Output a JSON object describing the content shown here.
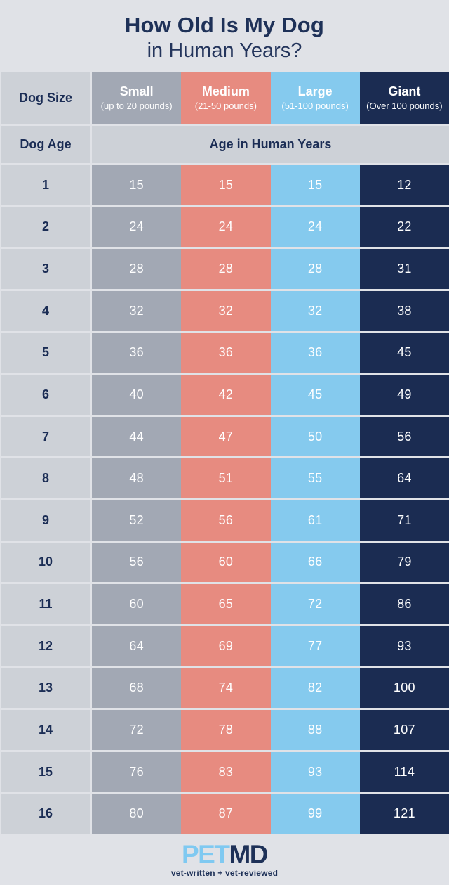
{
  "title": {
    "line1": "How Old Is My Dog",
    "line2": "in Human Years?"
  },
  "colors": {
    "background": "#E0E2E7",
    "navy_text": "#1E3158",
    "light_cell": "#CDD1D7",
    "white_text": "#FFFFFF",
    "small_column": "#A2A8B4",
    "medium_column": "#E78B80",
    "large_column": "#85CAEE",
    "giant_column": "#1B2C52",
    "logo_pet_blue": "#7FC9F1"
  },
  "table": {
    "corner_label": "Dog Size",
    "age_label": "Dog Age",
    "subheader_label": "Age in Human Years",
    "columns": [
      {
        "name": "Small",
        "subtitle": "(up to 20 pounds)",
        "color": "#A2A8B4"
      },
      {
        "name": "Medium",
        "subtitle": "(21-50 pounds)",
        "color": "#E78B80"
      },
      {
        "name": "Large",
        "subtitle": "(51-100 pounds)",
        "color": "#85CAEE"
      },
      {
        "name": "Giant",
        "subtitle": "(Over 100 pounds)",
        "color": "#1B2C52"
      }
    ],
    "rows": [
      {
        "age": "1",
        "values": [
          "15",
          "15",
          "15",
          "12"
        ]
      },
      {
        "age": "2",
        "values": [
          "24",
          "24",
          "24",
          "22"
        ]
      },
      {
        "age": "3",
        "values": [
          "28",
          "28",
          "28",
          "31"
        ]
      },
      {
        "age": "4",
        "values": [
          "32",
          "32",
          "32",
          "38"
        ]
      },
      {
        "age": "5",
        "values": [
          "36",
          "36",
          "36",
          "45"
        ]
      },
      {
        "age": "6",
        "values": [
          "40",
          "42",
          "45",
          "49"
        ]
      },
      {
        "age": "7",
        "values": [
          "44",
          "47",
          "50",
          "56"
        ]
      },
      {
        "age": "8",
        "values": [
          "48",
          "51",
          "55",
          "64"
        ]
      },
      {
        "age": "9",
        "values": [
          "52",
          "56",
          "61",
          "71"
        ]
      },
      {
        "age": "10",
        "values": [
          "56",
          "60",
          "66",
          "79"
        ]
      },
      {
        "age": "11",
        "values": [
          "60",
          "65",
          "72",
          "86"
        ]
      },
      {
        "age": "12",
        "values": [
          "64",
          "69",
          "77",
          "93"
        ]
      },
      {
        "age": "13",
        "values": [
          "68",
          "74",
          "82",
          "100"
        ]
      },
      {
        "age": "14",
        "values": [
          "72",
          "78",
          "88",
          "107"
        ]
      },
      {
        "age": "15",
        "values": [
          "76",
          "83",
          "93",
          "114"
        ]
      },
      {
        "age": "16",
        "values": [
          "80",
          "87",
          "99",
          "121"
        ]
      }
    ]
  },
  "footer": {
    "logo_pet": "PET",
    "logo_md": "MD",
    "tagline": "vet-written + vet-reviewed"
  },
  "chart_data": {
    "type": "table",
    "title": "How Old Is My Dog in Human Years?",
    "x_label": "Dog Age",
    "value_label": "Age in Human Years",
    "categories": [
      1,
      2,
      3,
      4,
      5,
      6,
      7,
      8,
      9,
      10,
      11,
      12,
      13,
      14,
      15,
      16
    ],
    "series": [
      {
        "name": "Small (up to 20 pounds)",
        "values": [
          15,
          24,
          28,
          32,
          36,
          40,
          44,
          48,
          52,
          56,
          60,
          64,
          68,
          72,
          76,
          80
        ]
      },
      {
        "name": "Medium (21-50 pounds)",
        "values": [
          15,
          24,
          28,
          32,
          36,
          42,
          47,
          51,
          56,
          60,
          65,
          69,
          74,
          78,
          83,
          87
        ]
      },
      {
        "name": "Large (51-100 pounds)",
        "values": [
          15,
          24,
          28,
          32,
          36,
          45,
          50,
          55,
          61,
          66,
          72,
          77,
          82,
          88,
          93,
          99
        ]
      },
      {
        "name": "Giant (Over 100 pounds)",
        "values": [
          12,
          22,
          31,
          38,
          45,
          49,
          56,
          64,
          71,
          79,
          86,
          93,
          100,
          107,
          114,
          121
        ]
      }
    ]
  }
}
